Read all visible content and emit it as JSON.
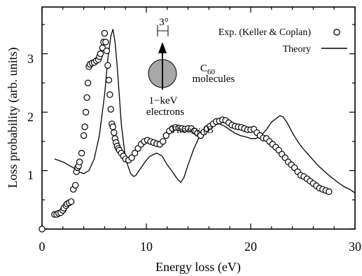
{
  "chart_data": {
    "type": "scatter",
    "xlabel": "Energy loss (eV)",
    "ylabel": "Loss probability (arb. units)",
    "xlim": [
      0,
      30
    ],
    "ylim": [
      0,
      3.8
    ],
    "xticks": [
      "0",
      "10",
      "20",
      "30"
    ],
    "yticks": [
      "1",
      "2",
      "3"
    ],
    "legend_position": "top-right",
    "grid": false,
    "series": [
      {
        "name": "Exp. (Keller & Coplan)",
        "kind": "markers",
        "marker": "open-circle",
        "x": [
          0.0,
          1.2,
          1.4,
          1.6,
          1.8,
          2.0,
          2.1,
          2.3,
          2.4,
          2.6,
          2.8,
          3.0,
          3.2,
          3.3,
          3.4,
          3.5,
          3.6,
          3.8,
          4.0,
          4.1,
          4.2,
          4.3,
          4.4,
          4.5,
          4.6,
          4.8,
          5.0,
          5.2,
          5.4,
          5.5,
          5.6,
          5.8,
          5.9,
          6.0,
          6.1,
          6.2,
          6.3,
          6.4,
          6.5,
          6.6,
          6.7,
          6.8,
          6.9,
          7.0,
          7.1,
          7.2,
          7.3,
          7.4,
          7.6,
          7.8,
          8.0,
          8.3,
          8.6,
          8.9,
          9.2,
          9.5,
          9.8,
          10.1,
          10.4,
          10.7,
          11.0,
          11.3,
          11.6,
          11.9,
          12.2,
          12.5,
          12.8,
          13.1,
          13.4,
          13.7,
          14.0,
          14.3,
          14.6,
          14.9,
          15.2,
          15.5,
          15.8,
          16.1,
          16.4,
          16.7,
          17.0,
          17.3,
          17.6,
          17.9,
          18.2,
          18.5,
          18.8,
          19.1,
          19.4,
          19.7,
          20.0,
          20.3,
          20.6,
          20.9,
          21.2,
          21.5,
          21.8,
          22.1,
          22.4,
          22.7,
          23.0,
          23.3,
          23.6,
          23.9,
          24.2,
          24.5,
          24.8,
          25.1,
          25.4,
          25.7,
          26.0,
          26.3,
          26.6,
          26.9,
          27.2,
          27.5
        ],
        "y": [
          0.0,
          0.25,
          0.25,
          0.27,
          0.28,
          0.32,
          0.36,
          0.4,
          0.43,
          0.45,
          0.47,
          0.68,
          0.75,
          0.98,
          1.05,
          1.08,
          1.15,
          1.3,
          1.6,
          1.75,
          2.0,
          2.25,
          2.5,
          2.78,
          2.82,
          2.84,
          2.85,
          2.88,
          2.9,
          2.95,
          3.0,
          3.1,
          3.2,
          3.35,
          3.2,
          3.05,
          2.8,
          2.55,
          2.3,
          2.05,
          1.8,
          1.75,
          1.65,
          1.55,
          1.48,
          1.42,
          1.38,
          1.35,
          1.3,
          1.25,
          1.2,
          1.18,
          1.22,
          1.3,
          1.38,
          1.45,
          1.5,
          1.52,
          1.5,
          1.48,
          1.46,
          1.45,
          1.5,
          1.6,
          1.68,
          1.72,
          1.74,
          1.73,
          1.72,
          1.71,
          1.72,
          1.72,
          1.68,
          1.64,
          1.6,
          1.66,
          1.72,
          1.76,
          1.8,
          1.84,
          1.85,
          1.87,
          1.86,
          1.82,
          1.78,
          1.76,
          1.75,
          1.74,
          1.72,
          1.7,
          1.7,
          1.71,
          1.65,
          1.6,
          1.56,
          1.55,
          1.5,
          1.45,
          1.4,
          1.35,
          1.28,
          1.22,
          1.15,
          1.1,
          1.05,
          0.98,
          0.92,
          0.9,
          0.86,
          0.82,
          0.78,
          0.74,
          0.7,
          0.68,
          0.66,
          0.64
        ]
      },
      {
        "name": "Theory",
        "kind": "line",
        "x": [
          1.2,
          2.0,
          3.0,
          3.5,
          4.0,
          4.5,
          5.0,
          5.5,
          6.0,
          6.3,
          6.6,
          6.8,
          7.0,
          7.2,
          7.4,
          7.6,
          8.0,
          8.5,
          8.8,
          9.0,
          9.5,
          10.0,
          10.3,
          10.6,
          11.0,
          11.5,
          12.0,
          12.5,
          13.0,
          13.3,
          13.6,
          14.0,
          14.5,
          15.0,
          15.5,
          16.0,
          16.5,
          17.0,
          17.5,
          18.0,
          18.5,
          19.0,
          19.5,
          20.0,
          20.5,
          21.0,
          21.5,
          22.0,
          22.5,
          22.8,
          23.1,
          23.5,
          24.0,
          24.5,
          25.0,
          25.5,
          26.0,
          26.5,
          27.0,
          27.5,
          28.0,
          28.5,
          29.0,
          29.5,
          30.0
        ],
        "y": [
          1.2,
          1.15,
          1.05,
          0.98,
          0.95,
          1.0,
          1.2,
          1.6,
          2.3,
          2.9,
          3.3,
          3.42,
          3.2,
          2.8,
          2.3,
          1.8,
          1.2,
          0.95,
          0.9,
          0.92,
          1.05,
          1.18,
          1.24,
          1.27,
          1.3,
          1.25,
          1.1,
          0.98,
          0.85,
          0.8,
          0.88,
          1.1,
          1.35,
          1.55,
          1.68,
          1.75,
          1.78,
          1.8,
          1.76,
          1.7,
          1.64,
          1.6,
          1.58,
          1.55,
          1.55,
          1.6,
          1.7,
          1.83,
          1.9,
          1.94,
          1.92,
          1.82,
          1.65,
          1.5,
          1.38,
          1.28,
          1.18,
          1.08,
          1.0,
          0.92,
          0.85,
          0.78,
          0.72,
          0.68,
          0.62
        ]
      }
    ],
    "annotations": {
      "angle": "3°",
      "molecule": "C",
      "molecule_subscript": "60",
      "molecule_suffix": "molecules",
      "beam_line1": "1−keV",
      "beam_line2": "electrons",
      "overlap_text": "Theory (B"
    }
  }
}
